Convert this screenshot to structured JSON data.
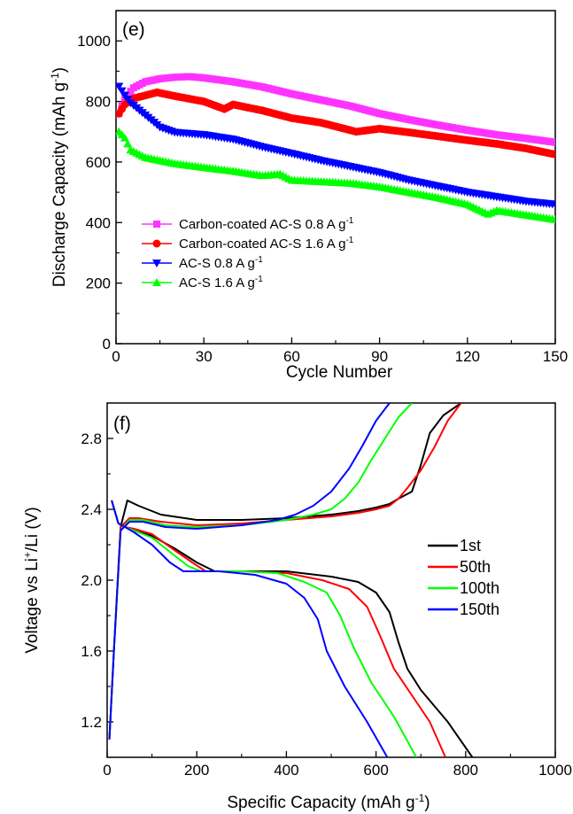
{
  "chart_data": [
    {
      "type": "line",
      "panel_label": "(e)",
      "xlabel": "Cycle Number",
      "ylabel": "Discharge Capacity (mAh g",
      "ylabel_sup": "-1",
      "ylabel_tail": ")",
      "xlim": [
        0,
        150
      ],
      "ylim": [
        0,
        1100
      ],
      "xticks": [
        0,
        30,
        60,
        90,
        120,
        150
      ],
      "yticks": [
        0,
        200,
        400,
        600,
        800,
        1000
      ],
      "grid": false,
      "legend_position": "lower-left",
      "series": [
        {
          "name": "Carbon-coated AC-S 0.8 A g",
          "name_sup": "-1",
          "color": "#ff33ff",
          "marker": "square",
          "x": [
            1,
            3,
            6,
            10,
            15,
            20,
            25,
            30,
            40,
            50,
            60,
            70,
            80,
            90,
            100,
            110,
            120,
            130,
            140,
            150
          ],
          "y": [
            760,
            810,
            845,
            865,
            875,
            880,
            882,
            878,
            865,
            848,
            825,
            805,
            785,
            760,
            740,
            722,
            705,
            690,
            678,
            665
          ]
        },
        {
          "name": "Carbon-coated AC-S 1.6 A g",
          "name_sup": "-1",
          "color": "#ff0000",
          "marker": "circle",
          "x": [
            1,
            3,
            6,
            10,
            14,
            20,
            30,
            37,
            40,
            50,
            60,
            70,
            80,
            82,
            90,
            100,
            110,
            120,
            130,
            140,
            150
          ],
          "y": [
            760,
            790,
            810,
            820,
            830,
            818,
            800,
            775,
            790,
            770,
            745,
            730,
            705,
            700,
            710,
            698,
            685,
            672,
            660,
            645,
            625
          ]
        },
        {
          "name": "AC-S 0.8 A g",
          "name_sup": "-1",
          "color": "#0000ff",
          "marker": "triangle-down",
          "x": [
            1,
            3,
            5,
            10,
            15,
            20,
            30,
            40,
            50,
            60,
            70,
            80,
            90,
            100,
            110,
            120,
            130,
            140,
            150
          ],
          "y": [
            850,
            820,
            795,
            755,
            715,
            698,
            690,
            675,
            650,
            628,
            605,
            585,
            565,
            540,
            520,
            500,
            485,
            470,
            460
          ]
        },
        {
          "name": "AC-S 1.6 A g",
          "name_sup": "-1",
          "color": "#00ff00",
          "marker": "triangle-up",
          "x": [
            1,
            3,
            5,
            10,
            20,
            30,
            40,
            50,
            56,
            60,
            70,
            80,
            90,
            100,
            110,
            120,
            127,
            130,
            140,
            150
          ],
          "y": [
            700,
            680,
            640,
            615,
            595,
            582,
            570,
            555,
            560,
            540,
            535,
            530,
            518,
            500,
            482,
            460,
            428,
            440,
            425,
            410
          ]
        }
      ]
    },
    {
      "type": "line",
      "panel_label": "(f)",
      "xlabel": "Specific Capacity (mAh g",
      "xlabel_sup": "-1",
      "xlabel_tail": ")",
      "ylabel": "Voltage vs Li",
      "ylabel_sup": "+",
      "ylabel_tail": "/Li (V)",
      "xlim": [
        0,
        1000
      ],
      "ylim": [
        1.0,
        3.0
      ],
      "xticks": [
        0,
        200,
        400,
        600,
        800,
        1000
      ],
      "yticks": [
        1.2,
        1.6,
        2.0,
        2.4,
        2.8
      ],
      "ytick_labels": [
        "1.2",
        "1.6",
        "2.0",
        "2.4",
        "2.8"
      ],
      "grid": false,
      "legend_position": "right",
      "series": [
        {
          "name": "1st",
          "color": "#000000",
          "discharge": {
            "x": [
              10,
              25,
              40,
              60,
              100,
              150,
              200,
              240,
              300,
              400,
              500,
              560,
              600,
              630,
              650,
              670,
              700,
              760,
              815
            ],
            "y": [
              2.45,
              2.32,
              2.3,
              2.28,
              2.25,
              2.18,
              2.1,
              2.05,
              2.05,
              2.05,
              2.02,
              1.99,
              1.93,
              1.82,
              1.65,
              1.5,
              1.38,
              1.2,
              1.0
            ]
          },
          "charge": {
            "x": [
              5,
              15,
              30,
              45,
              70,
              120,
              200,
              300,
              400,
              500,
              560,
              600,
              630,
              650,
              680,
              700,
              720,
              750,
              790,
              810
            ],
            "y": [
              1.1,
              1.6,
              2.3,
              2.45,
              2.42,
              2.37,
              2.34,
              2.34,
              2.35,
              2.37,
              2.39,
              2.41,
              2.43,
              2.46,
              2.5,
              2.65,
              2.83,
              2.93,
              3.0,
              3.1
            ]
          }
        },
        {
          "name": "50th",
          "color": "#ff0000",
          "discharge": {
            "x": [
              10,
              25,
              40,
              60,
              100,
              150,
              190,
              220,
              300,
              400,
              480,
              540,
              580,
              610,
              640,
              680,
              720,
              755
            ],
            "y": [
              2.45,
              2.32,
              2.3,
              2.29,
              2.26,
              2.17,
              2.1,
              2.05,
              2.05,
              2.04,
              2.0,
              1.95,
              1.85,
              1.68,
              1.5,
              1.35,
              1.2,
              1.0
            ]
          },
          "charge": {
            "x": [
              5,
              15,
              30,
              50,
              70,
              120,
              200,
              300,
              400,
              500,
              560,
              600,
              630,
              650,
              670,
              700,
              730,
              760,
              790
            ],
            "y": [
              1.1,
              1.6,
              2.3,
              2.35,
              2.35,
              2.33,
              2.31,
              2.32,
              2.34,
              2.36,
              2.38,
              2.4,
              2.42,
              2.46,
              2.52,
              2.62,
              2.75,
              2.9,
              3.0
            ]
          }
        },
        {
          "name": "100th",
          "color": "#00ff00",
          "discharge": {
            "x": [
              10,
              25,
              40,
              60,
              100,
              150,
              180,
              210,
              300,
              380,
              440,
              490,
              520,
              550,
              590,
              640,
              690
            ],
            "y": [
              2.45,
              2.32,
              2.3,
              2.28,
              2.24,
              2.14,
              2.08,
              2.05,
              2.05,
              2.04,
              1.99,
              1.93,
              1.8,
              1.62,
              1.42,
              1.23,
              1.0
            ]
          },
          "charge": {
            "x": [
              5,
              15,
              30,
              50,
              80,
              130,
              200,
              300,
              400,
              460,
              500,
              530,
              560,
              590,
              620,
              650,
              680
            ],
            "y": [
              1.1,
              1.6,
              2.28,
              2.34,
              2.34,
              2.31,
              2.3,
              2.31,
              2.34,
              2.37,
              2.4,
              2.46,
              2.55,
              2.68,
              2.8,
              2.92,
              3.0
            ]
          }
        },
        {
          "name": "150th",
          "color": "#0000ff",
          "discharge": {
            "x": [
              10,
              25,
              40,
              60,
              100,
              140,
              170,
              190,
              250,
              330,
              400,
              440,
              470,
              490,
              530,
              580,
              625
            ],
            "y": [
              2.45,
              2.32,
              2.3,
              2.27,
              2.2,
              2.1,
              2.05,
              2.05,
              2.05,
              2.03,
              1.98,
              1.9,
              1.78,
              1.6,
              1.4,
              1.2,
              1.0
            ]
          },
          "charge": {
            "x": [
              5,
              15,
              30,
              50,
              80,
              130,
              200,
              300,
              380,
              420,
              460,
              500,
              540,
              570,
              600,
              630
            ],
            "y": [
              1.1,
              1.6,
              2.28,
              2.33,
              2.33,
              2.3,
              2.29,
              2.31,
              2.34,
              2.37,
              2.42,
              2.5,
              2.63,
              2.76,
              2.9,
              3.0
            ]
          }
        }
      ]
    }
  ]
}
